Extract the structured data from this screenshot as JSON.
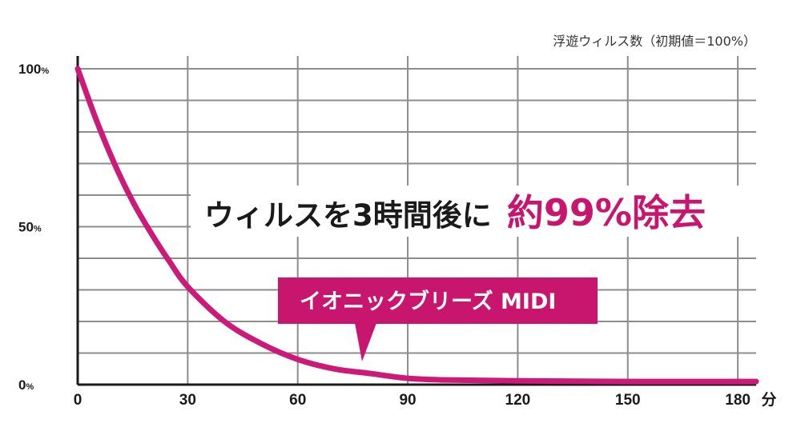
{
  "chart_data": {
    "type": "line",
    "title": "浮遊ウィルス数（初期値＝100%）",
    "xlabel": "分",
    "ylabel": "",
    "x_ticks": [
      "0",
      "30",
      "60",
      "90",
      "120",
      "150",
      "180"
    ],
    "y_ticks": [
      {
        "value": 0,
        "label": "0",
        "unit": "%"
      },
      {
        "value": 50,
        "label": "50",
        "unit": "%"
      },
      {
        "value": 100,
        "label": "100",
        "unit": "%"
      }
    ],
    "xlim": [
      0,
      185
    ],
    "ylim": [
      0,
      100
    ],
    "grid": true,
    "series": [
      {
        "name": "イオニックブリーズ MIDI",
        "color": "#cc1a78",
        "x": [
          0,
          5,
          10,
          15,
          20,
          25,
          30,
          40,
          50,
          60,
          70,
          80,
          90,
          100,
          120,
          150,
          185
        ],
        "y": [
          100,
          84,
          70,
          58,
          48,
          39,
          31,
          20,
          13,
          8,
          5,
          3.5,
          2,
          1.5,
          1.2,
          1.0,
          1.0
        ]
      }
    ],
    "annotations": {
      "headline_prefix": "ウィルスを3時間後に",
      "headline_highlight": "約99%除去",
      "callout_label": "イオニックブリーズ MIDI"
    }
  },
  "colors": {
    "accent": "#cc1a78",
    "grid": "#8c8c8c",
    "axis": "#1a1a1a"
  }
}
